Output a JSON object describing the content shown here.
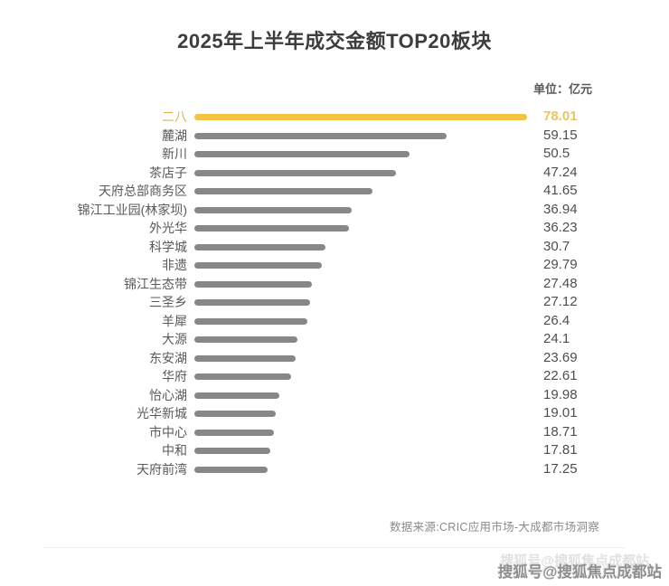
{
  "title": "2025年上半年成交金额TOP20板块",
  "unit_label": "单位：亿元",
  "source_note": "数据来源:CRIC应用市场-大成都市场洞察",
  "watermark": "搜狐号@搜狐焦点成都站",
  "colors": {
    "highlight_bar": "#F5C242",
    "highlight_text": "#EBC45F",
    "bar_gray": "#878787",
    "label_gray": "#595959",
    "value_gray": "#4E4E4E",
    "title_color": "#3D3D3D",
    "note_gray": "#8A8A8A"
  },
  "chart_data": {
    "type": "bar",
    "orientation": "horizontal",
    "title": "2025年上半年成交金额TOP20板块",
    "unit": "亿元",
    "xlabel": "",
    "ylabel": "",
    "xlim": [
      0,
      78.01
    ],
    "grid": false,
    "legend": false,
    "value_labels_shown": true,
    "highlight_index": 0,
    "categories": [
      "二八",
      "麓湖",
      "新川",
      "茶店子",
      "天府总部商务区",
      "锦江工业园(林家坝)",
      "外光华",
      "科学城",
      "非遗",
      "锦江生态带",
      "三圣乡",
      "羊犀",
      "大源",
      "东安湖",
      "华府",
      "怡心湖",
      "光华新城",
      "市中心",
      "中和",
      "天府前湾"
    ],
    "values": [
      78.01,
      59.15,
      50.5,
      47.24,
      41.65,
      36.94,
      36.23,
      30.7,
      29.79,
      27.48,
      27.12,
      26.4,
      24.1,
      23.69,
      22.61,
      19.98,
      19.01,
      18.71,
      17.81,
      17.25
    ]
  }
}
